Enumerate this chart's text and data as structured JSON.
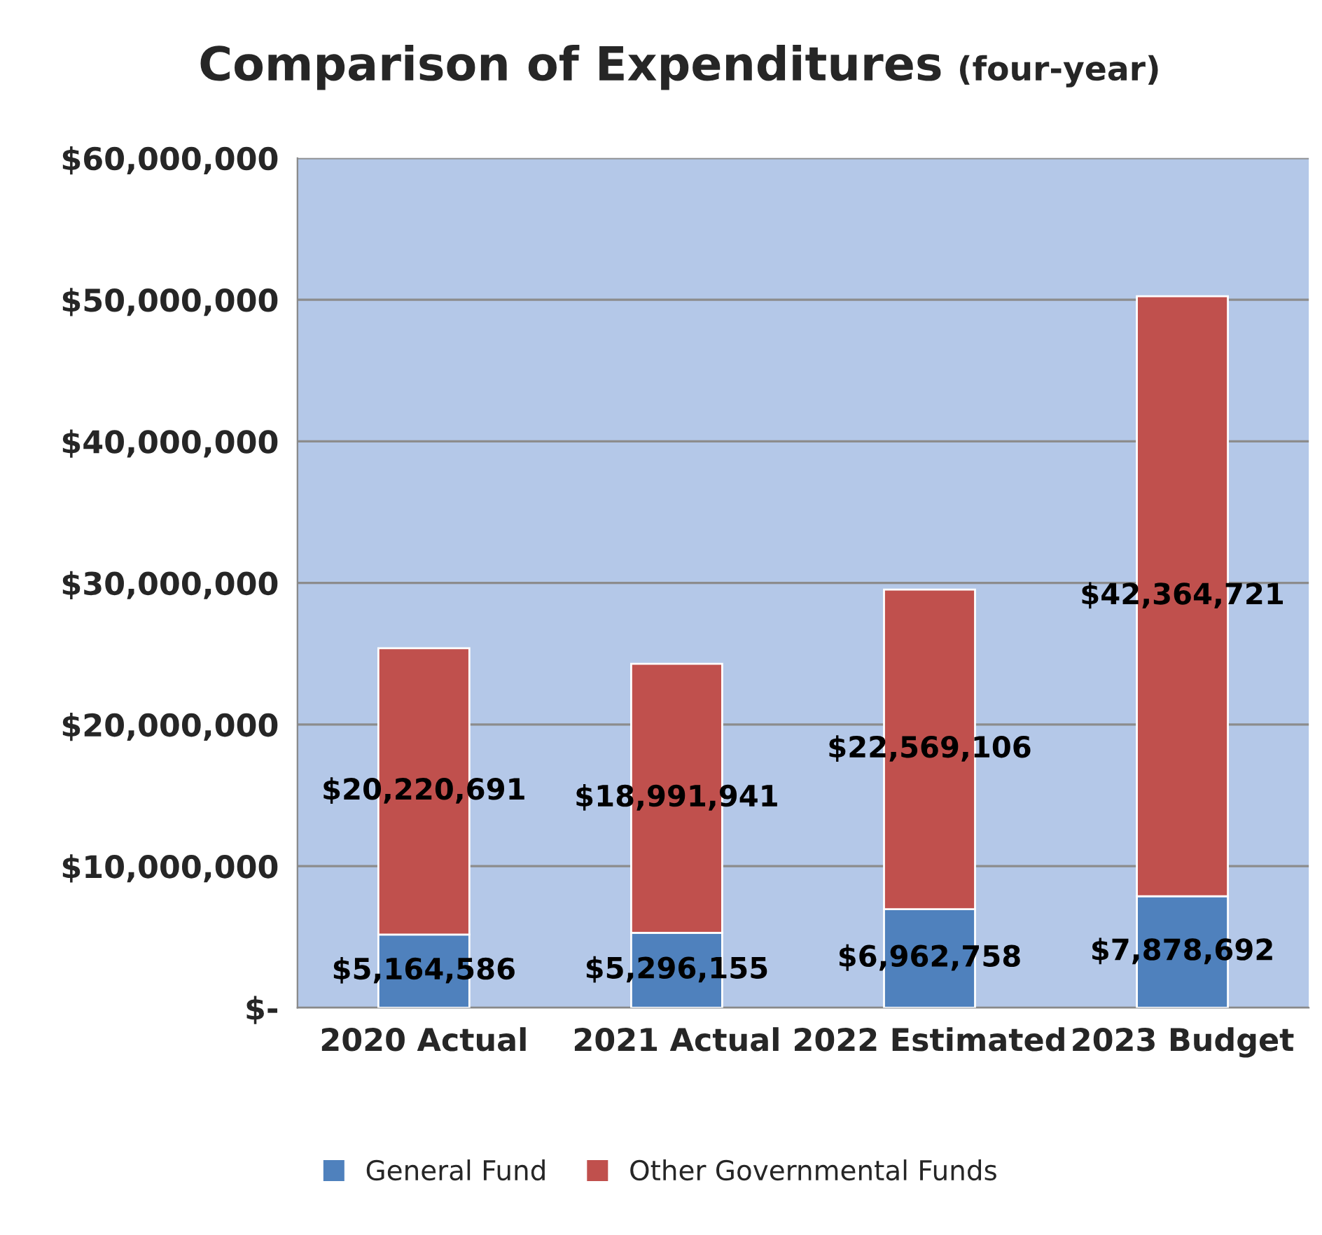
{
  "chart_data": {
    "type": "bar",
    "title": "Comparison of Expenditures",
    "subtitle": "(four-year)",
    "categories": [
      "2020 Actual",
      "2021 Actual",
      "2022 Estimated",
      "2023 Budget"
    ],
    "stacked": true,
    "series": [
      {
        "name": "General Fund",
        "color": "#4f81bd",
        "values": [
          5164586,
          5296155,
          6962758,
          7878692
        ],
        "value_labels": [
          "$5,164,586",
          "$5,296,155",
          "$6,962,758",
          "$7,878,692"
        ]
      },
      {
        "name": "Other Governmental Funds",
        "color": "#c0504d",
        "values": [
          20220691,
          18991941,
          22569106,
          42364721
        ],
        "value_labels": [
          "$20,220,691",
          "$18,991,941",
          "$22,569,106",
          "$42,364,721"
        ]
      }
    ],
    "ylim": [
      0,
      60000000
    ],
    "yticks": [
      {
        "value": 0,
        "label": "$-"
      },
      {
        "value": 10000000,
        "label": "$10,000,000"
      },
      {
        "value": 20000000,
        "label": "$20,000,000"
      },
      {
        "value": 30000000,
        "label": "$30,000,000"
      },
      {
        "value": 40000000,
        "label": "$40,000,000"
      },
      {
        "value": 50000000,
        "label": "$50,000,000"
      },
      {
        "value": 60000000,
        "label": "$60,000,000"
      }
    ],
    "grid": "y",
    "legend": "bottom"
  }
}
